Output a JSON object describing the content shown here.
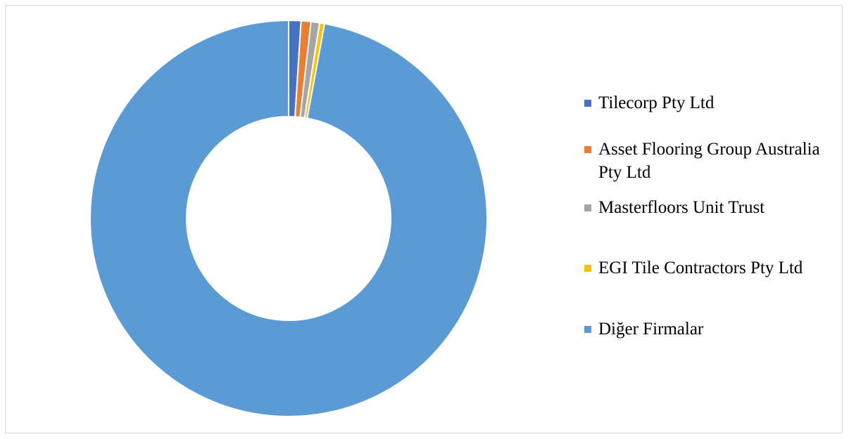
{
  "chart_data": {
    "type": "pie",
    "variant": "doughnut",
    "title": "",
    "legend_position": "right",
    "slices": [
      {
        "label": "Tilecorp Pty Ltd",
        "value": 1.0,
        "color": "#4472c4"
      },
      {
        "label": "Asset Flooring Group Australia Pty Ltd",
        "value": 0.8,
        "color": "#ed7d31"
      },
      {
        "label": "Masterfloors Unit Trust",
        "value": 0.7,
        "color": "#a5a5a5"
      },
      {
        "label": "EGI Tile Contractors Pty Ltd",
        "value": 0.4,
        "color": "#ffc000"
      },
      {
        "label": "Diğer Firmalar",
        "value": 97.1,
        "color": "#5b9bd5"
      }
    ]
  }
}
